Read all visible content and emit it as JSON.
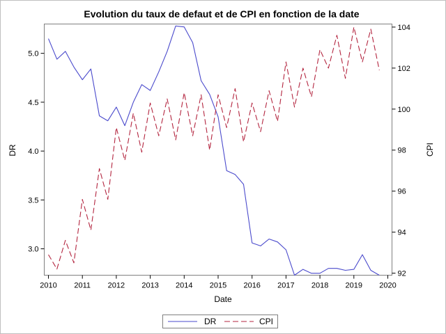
{
  "chart_data": {
    "type": "line",
    "title": "Evolution du taux de defaut et de CPI en fonction de la date",
    "xlabel": "Date",
    "ylabel_left": "DR",
    "ylabel_right": "CPI",
    "x_range": [
      2010,
      2020
    ],
    "y_left_range": [
      2.73,
      5.3
    ],
    "y_right_range": [
      91.9,
      104.15
    ],
    "x_ticks": [
      "2010",
      "2011",
      "2012",
      "2013",
      "2014",
      "2015",
      "2016",
      "2017",
      "2018",
      "2019",
      "2020"
    ],
    "y_left_ticks": [
      "3.0",
      "3.5",
      "4.0",
      "4.5",
      "5.0"
    ],
    "y_right_ticks": [
      "92",
      "94",
      "96",
      "98",
      "100",
      "102",
      "104"
    ],
    "grid": false,
    "legend_position": "bottom",
    "colors": {
      "dr": "#4a4acc",
      "cpi": "#b3253f"
    },
    "series": [
      {
        "name": "DR",
        "axis": "left",
        "style": "solid",
        "x": [
          2010.0,
          2010.25,
          2010.5,
          2010.75,
          2011.0,
          2011.25,
          2011.5,
          2011.75,
          2012.0,
          2012.25,
          2012.5,
          2012.75,
          2013.0,
          2013.25,
          2013.5,
          2013.75,
          2014.0,
          2014.25,
          2014.5,
          2014.75,
          2015.0,
          2015.25,
          2015.5,
          2015.75,
          2016.0,
          2016.25,
          2016.5,
          2016.75,
          2017.0,
          2017.25,
          2017.5,
          2017.75,
          2018.0,
          2018.25,
          2018.5,
          2018.75,
          2019.0,
          2019.25,
          2019.5,
          2019.75
        ],
        "values": [
          5.15,
          4.94,
          5.02,
          4.86,
          4.73,
          4.84,
          4.36,
          4.31,
          4.45,
          4.26,
          4.5,
          4.68,
          4.62,
          4.81,
          5.02,
          5.28,
          5.27,
          5.11,
          4.72,
          4.58,
          4.35,
          3.8,
          3.76,
          3.66,
          3.06,
          3.03,
          3.1,
          3.07,
          2.99,
          2.73,
          2.79,
          2.75,
          2.75,
          2.8,
          2.8,
          2.78,
          2.79,
          2.94,
          2.78,
          2.73
        ]
      },
      {
        "name": "CPI",
        "axis": "right",
        "style": "dashed",
        "x": [
          2010.0,
          2010.25,
          2010.5,
          2010.75,
          2011.0,
          2011.25,
          2011.5,
          2011.75,
          2012.0,
          2012.25,
          2012.5,
          2012.75,
          2013.0,
          2013.25,
          2013.5,
          2013.75,
          2014.0,
          2014.25,
          2014.5,
          2014.75,
          2015.0,
          2015.25,
          2015.5,
          2015.75,
          2016.0,
          2016.25,
          2016.5,
          2016.75,
          2017.0,
          2017.25,
          2017.5,
          2017.75,
          2018.0,
          2018.25,
          2018.5,
          2018.75,
          2019.0,
          2019.25,
          2019.5,
          2019.75
        ],
        "values": [
          92.9,
          92.2,
          93.6,
          92.5,
          95.6,
          94.1,
          97.1,
          95.6,
          99.1,
          97.5,
          99.8,
          97.9,
          100.3,
          98.7,
          100.5,
          98.5,
          100.8,
          98.7,
          100.7,
          98.0,
          100.7,
          99.1,
          101.0,
          98.4,
          100.3,
          98.9,
          100.9,
          99.4,
          102.3,
          100.1,
          102.0,
          100.6,
          102.9,
          102.0,
          103.6,
          101.5,
          104.0,
          102.3,
          103.9,
          101.9
        ]
      }
    ]
  }
}
